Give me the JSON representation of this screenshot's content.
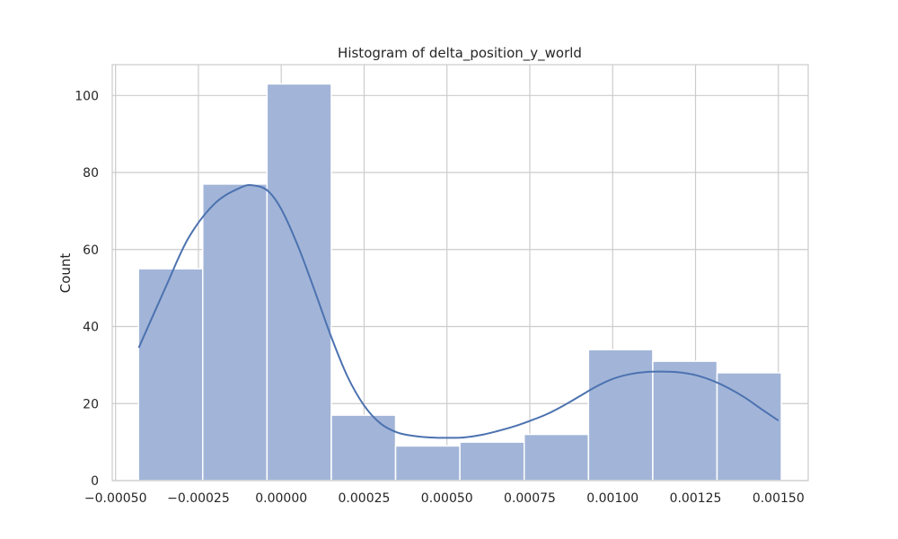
{
  "chart_data": {
    "type": "bar",
    "title": "Histogram of delta_position_y_world",
    "xlabel": "",
    "ylabel": "Count",
    "bins": [
      {
        "x0": -0.000431,
        "x1": -0.000237,
        "count": 55
      },
      {
        "x0": -0.000237,
        "x1": -4.3e-05,
        "count": 77
      },
      {
        "x0": -4.3e-05,
        "x1": 0.000151,
        "count": 103
      },
      {
        "x0": 0.000151,
        "x1": 0.000345,
        "count": 17
      },
      {
        "x0": 0.000345,
        "x1": 0.000539,
        "count": 9
      },
      {
        "x0": 0.000539,
        "x1": 0.000733,
        "count": 10
      },
      {
        "x0": 0.000733,
        "x1": 0.000927,
        "count": 12
      },
      {
        "x0": 0.000927,
        "x1": 0.001121,
        "count": 34
      },
      {
        "x0": 0.001121,
        "x1": 0.001315,
        "count": 31
      },
      {
        "x0": 0.001315,
        "x1": 0.001509,
        "count": 28
      }
    ],
    "kde": {
      "x": [
        -0.00043,
        -0.00035,
        -0.00028,
        -0.0002,
        -0.00012,
        -8e-05,
        -4e-05,
        0.0,
        5e-05,
        0.0001,
        0.00015,
        0.0002,
        0.00025,
        0.0003,
        0.00035,
        0.0004,
        0.00045,
        0.0005,
        0.00055,
        0.0006,
        0.00065,
        0.0007,
        0.00075,
        0.0008,
        0.00085,
        0.0009,
        0.00095,
        0.001,
        0.00105,
        0.0011,
        0.00115,
        0.0012,
        0.00125,
        0.0013,
        0.00135,
        0.0014,
        0.00145,
        0.0015
      ],
      "y": [
        34.5,
        50,
        63,
        72,
        76.2,
        76.6,
        75.2,
        70.5,
        61,
        49.5,
        37.5,
        27,
        19.5,
        14.8,
        12.5,
        11.6,
        11.2,
        11.1,
        11.2,
        11.8,
        12.8,
        14,
        15.5,
        17.2,
        19.4,
        21.9,
        24.4,
        26.4,
        27.6,
        28.2,
        28.3,
        28.1,
        27.4,
        26,
        24,
        21.5,
        18.5,
        15.6
      ]
    },
    "xlim": [
      -0.00051,
      0.00159
    ],
    "ylim": [
      0,
      108
    ],
    "xticks": [
      {
        "value": -0.0005,
        "label": "−0.00050"
      },
      {
        "value": -0.00025,
        "label": "−0.00025"
      },
      {
        "value": 0.0,
        "label": "0.00000"
      },
      {
        "value": 0.00025,
        "label": "0.00025"
      },
      {
        "value": 0.0005,
        "label": "0.00050"
      },
      {
        "value": 0.00075,
        "label": "0.00075"
      },
      {
        "value": 0.001,
        "label": "0.00100"
      },
      {
        "value": 0.00125,
        "label": "0.00125"
      },
      {
        "value": 0.0015,
        "label": "0.00150"
      }
    ],
    "yticks": [
      {
        "value": 0,
        "label": "0"
      },
      {
        "value": 20,
        "label": "20"
      },
      {
        "value": 40,
        "label": "40"
      },
      {
        "value": 60,
        "label": "60"
      },
      {
        "value": 80,
        "label": "80"
      },
      {
        "value": 100,
        "label": "100"
      }
    ],
    "grid": true,
    "colors": {
      "bar_fill": "#a2b5d8",
      "bar_edge": "#ffffff",
      "kde_line": "#4c72b0",
      "grid": "#cccccc",
      "spine": "#cccccc",
      "text": "#262626"
    }
  }
}
